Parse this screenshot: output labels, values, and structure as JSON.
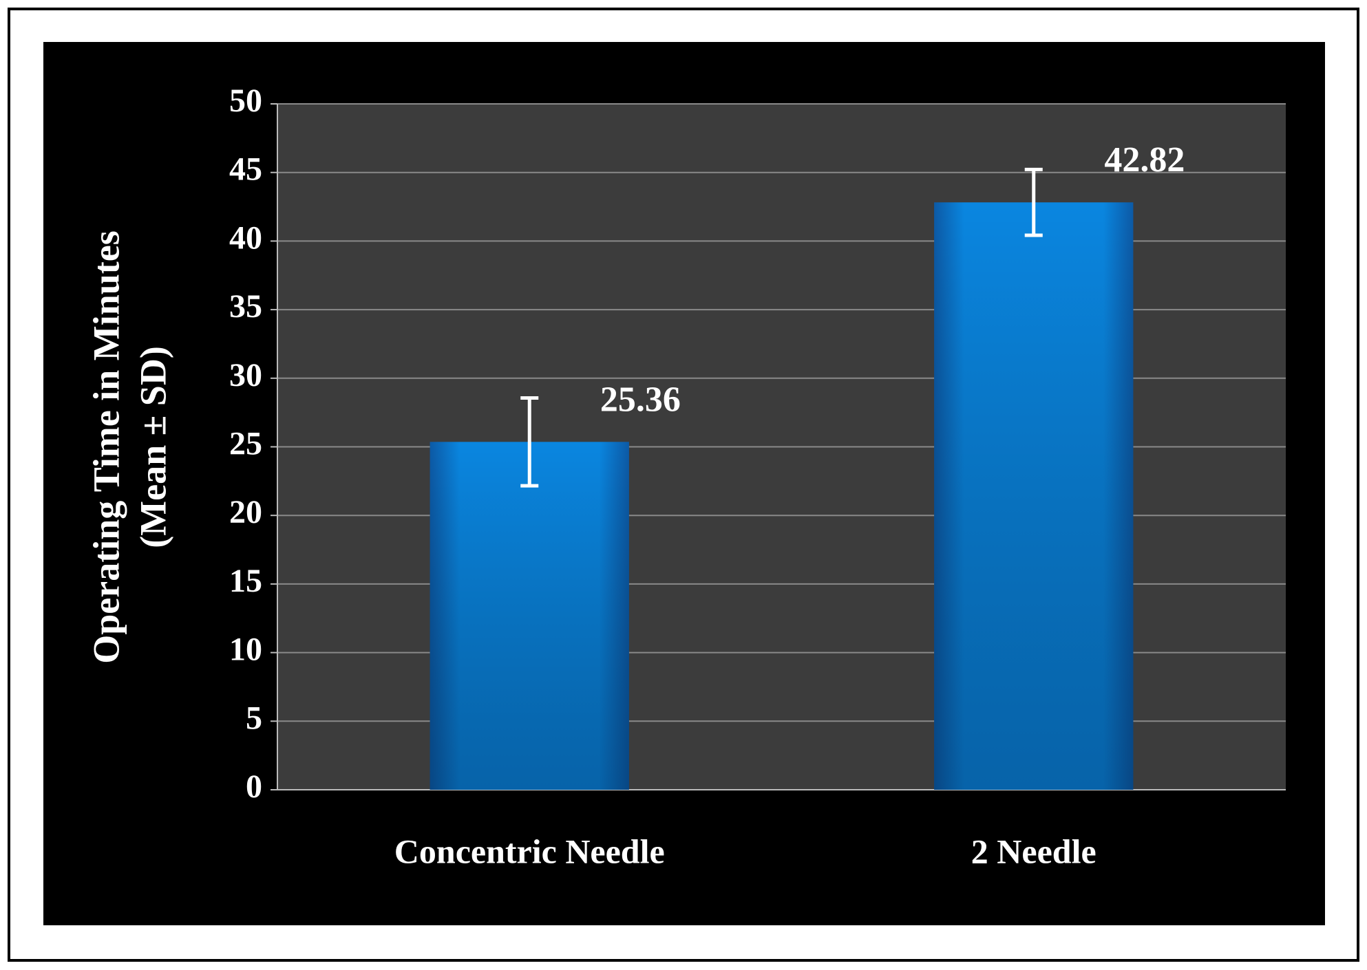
{
  "chart_data": {
    "type": "bar",
    "ylabel": [
      "Operating Time in Minutes",
      "(Mean ± SD)"
    ],
    "categories": [
      "Concentric Needle",
      "2 Needle"
    ],
    "values": [
      25.36,
      42.82
    ],
    "errors": [
      3.2,
      2.4
    ],
    "color": "#0a7fd6",
    "ylim": [
      0,
      50
    ],
    "yticks": [
      0,
      5,
      10,
      15,
      20,
      25,
      30,
      35,
      40,
      45,
      50
    ],
    "grid": true
  }
}
